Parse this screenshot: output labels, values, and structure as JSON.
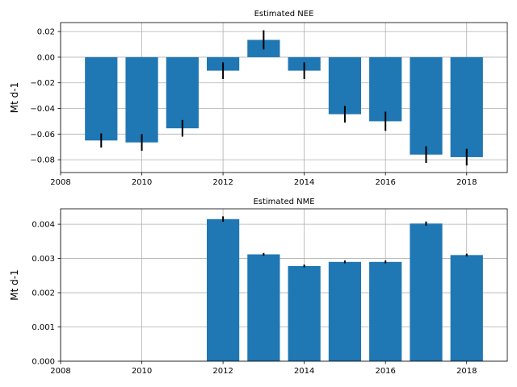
{
  "chart_data": [
    {
      "type": "bar",
      "title": "Estimated NEE",
      "xlabel": "",
      "ylabel": "Mt d-1",
      "bar_color": "#1f77b4",
      "error_color": "#000000",
      "grid": true,
      "xlim": [
        2008,
        2019
      ],
      "ylim": [
        -0.09,
        0.027
      ],
      "xticks": [
        2008,
        2010,
        2012,
        2014,
        2016,
        2018
      ],
      "xtick_labels": [
        "2008",
        "2010",
        "2012",
        "2014",
        "2016",
        "2018"
      ],
      "yticks": [
        0.02,
        0.0,
        -0.02,
        -0.04,
        -0.06,
        -0.08
      ],
      "ytick_labels": [
        "0.02",
        "0.00",
        "−0.02",
        "−0.04",
        "−0.06",
        "−0.08"
      ],
      "x": [
        2009,
        2010,
        2011,
        2012,
        2013,
        2014,
        2015,
        2016,
        2017,
        2018
      ],
      "values": [
        -0.065,
        -0.0665,
        -0.0555,
        -0.0105,
        0.0135,
        -0.0105,
        -0.0445,
        -0.05,
        -0.076,
        -0.078
      ],
      "errors": [
        0.0055,
        0.0065,
        0.0065,
        0.0065,
        0.0075,
        0.0065,
        0.0065,
        0.0075,
        0.0065,
        0.0065
      ]
    },
    {
      "type": "bar",
      "title": "Estimated NME",
      "xlabel": "",
      "ylabel": "Mt d-1",
      "bar_color": "#1f77b4",
      "error_color": "#000000",
      "grid": true,
      "xlim": [
        2008,
        2019
      ],
      "ylim": [
        0,
        0.00445
      ],
      "xticks": [
        2008,
        2010,
        2012,
        2014,
        2016,
        2018
      ],
      "xtick_labels": [
        "2008",
        "2010",
        "2012",
        "2014",
        "2016",
        "2018"
      ],
      "yticks": [
        0.0,
        0.001,
        0.002,
        0.003,
        0.004
      ],
      "ytick_labels": [
        "0.000",
        "0.001",
        "0.002",
        "0.003",
        "0.004"
      ],
      "x": [
        2012,
        2013,
        2014,
        2015,
        2016,
        2017,
        2018
      ],
      "values": [
        0.00415,
        0.00312,
        0.00278,
        0.0029,
        0.0029,
        0.00402,
        0.0031
      ],
      "errors": [
        8e-05,
        4e-05,
        4e-05,
        4e-05,
        4e-05,
        6e-05,
        4e-05
      ]
    }
  ]
}
